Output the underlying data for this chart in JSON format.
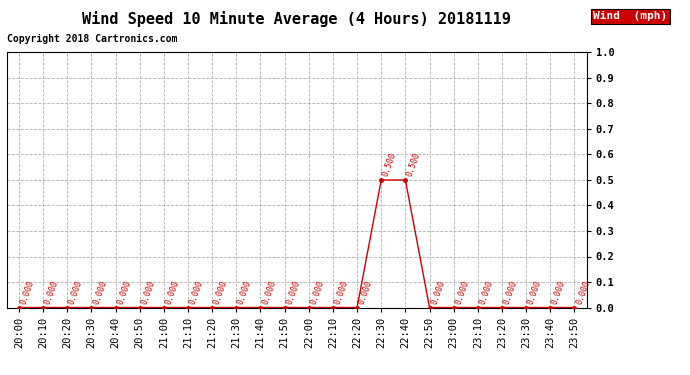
{
  "title": "Wind Speed 10 Minute Average (4 Hours) 20181119",
  "copyright": "Copyright 2018 Cartronics.com",
  "legend_label": "Wind  (mph)",
  "x_labels": [
    "20:00",
    "20:10",
    "20:20",
    "20:30",
    "20:40",
    "20:50",
    "21:00",
    "21:10",
    "21:20",
    "21:30",
    "21:40",
    "21:50",
    "22:00",
    "22:10",
    "22:20",
    "22:30",
    "22:40",
    "22:50",
    "23:00",
    "23:10",
    "23:20",
    "23:30",
    "23:40",
    "23:50"
  ],
  "y_values": [
    0.0,
    0.0,
    0.0,
    0.0,
    0.0,
    0.0,
    0.0,
    0.0,
    0.0,
    0.0,
    0.0,
    0.0,
    0.0,
    0.0,
    0.0,
    0.5,
    0.5,
    0.0,
    0.0,
    0.0,
    0.0,
    0.0,
    0.0,
    0.0
  ],
  "ylim": [
    0.0,
    1.0
  ],
  "yticks": [
    0.0,
    0.1,
    0.2,
    0.3,
    0.4,
    0.5,
    0.6,
    0.7,
    0.8,
    0.9,
    1.0
  ],
  "line_color": "#cc0000",
  "marker_color": "#cc0000",
  "label_color": "#cc0000",
  "legend_bg": "#cc0000",
  "legend_text_color": "#ffffff",
  "bg_color": "#ffffff",
  "grid_color": "#b0b0b0",
  "title_fontsize": 11,
  "copyright_fontsize": 7,
  "label_fontsize": 6,
  "tick_fontsize": 7.5,
  "legend_fontsize": 8
}
